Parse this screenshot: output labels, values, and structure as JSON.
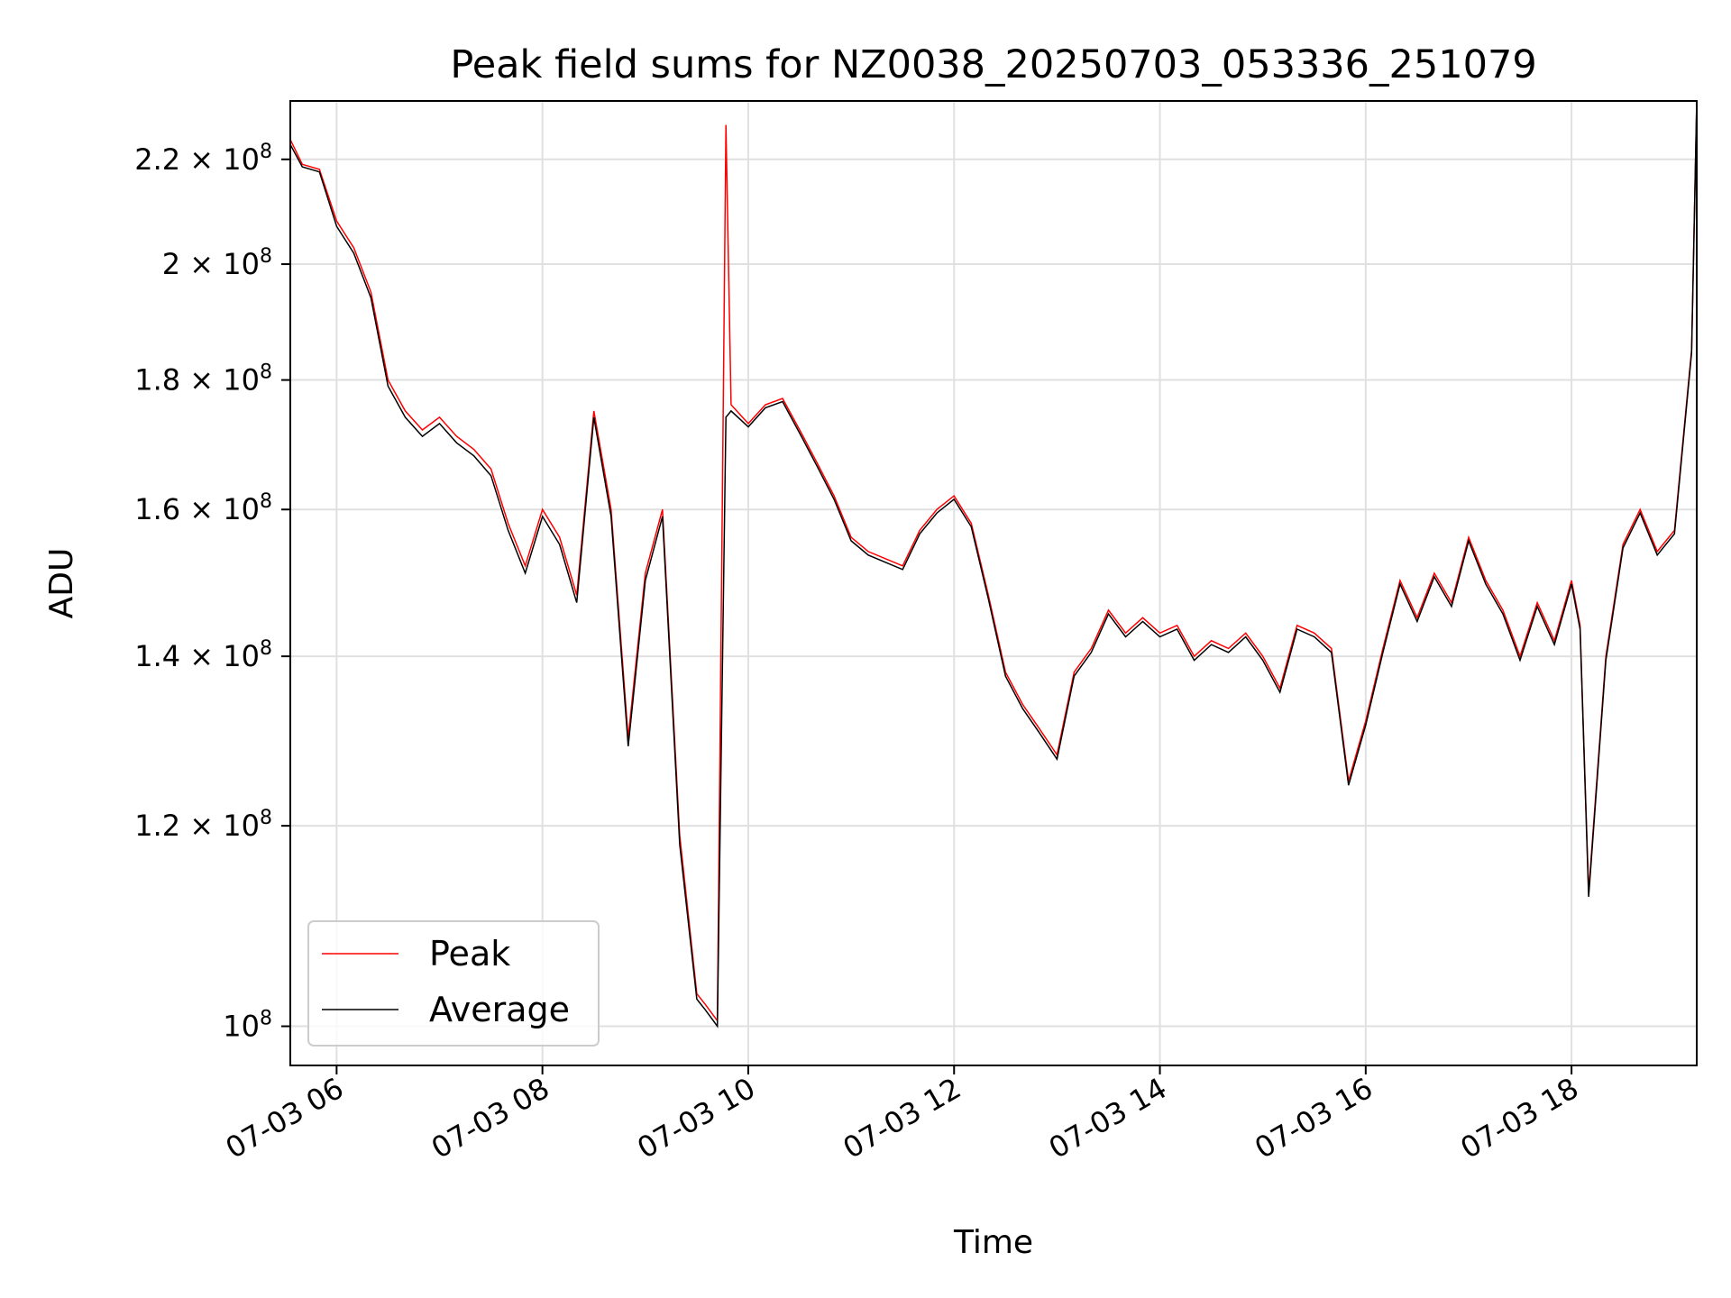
{
  "chart_data": {
    "type": "line",
    "title": "Peak field sums for NZ0038_20250703_053336_251079",
    "xlabel": "Time",
    "ylabel": "ADU",
    "yscale": "log",
    "ylim": [
      96500000,
      232000000
    ],
    "xlim": [
      "2025-07-03 05:33",
      "2025-07-03 19:13"
    ],
    "x_ticks": [
      "07-03 06",
      "07-03 08",
      "07-03 10",
      "07-03 12",
      "07-03 14",
      "07-03 16",
      "07-03 18"
    ],
    "y_ticks": [
      {
        "value": 100000000,
        "mantissa": "",
        "exp": "8"
      },
      {
        "value": 120000000,
        "mantissa": "1.2",
        "exp": "8"
      },
      {
        "value": 140000000,
        "mantissa": "1.4",
        "exp": "8"
      },
      {
        "value": 160000000,
        "mantissa": "1.6",
        "exp": "8"
      },
      {
        "value": 180000000,
        "mantissa": "1.8",
        "exp": "8"
      },
      {
        "value": 200000000,
        "mantissa": "2",
        "exp": "8"
      },
      {
        "value": 220000000,
        "mantissa": "2.2",
        "exp": "8"
      }
    ],
    "grid": true,
    "legend_position": "lower-left",
    "colors": {
      "peak": "#ff0000",
      "average": "#000000",
      "grid": "#e0e0e0"
    },
    "series": [
      {
        "name": "Peak",
        "x": [
          "2025-07-03 05:33",
          "2025-07-03 05:40",
          "2025-07-03 05:50",
          "2025-07-03 06:00",
          "2025-07-03 06:10",
          "2025-07-03 06:20",
          "2025-07-03 06:30",
          "2025-07-03 06:40",
          "2025-07-03 06:50",
          "2025-07-03 07:00",
          "2025-07-03 07:10",
          "2025-07-03 07:20",
          "2025-07-03 07:30",
          "2025-07-03 07:40",
          "2025-07-03 07:50",
          "2025-07-03 08:00",
          "2025-07-03 08:10",
          "2025-07-03 08:20",
          "2025-07-03 08:30",
          "2025-07-03 08:40",
          "2025-07-03 08:50",
          "2025-07-03 09:00",
          "2025-07-03 09:10",
          "2025-07-03 09:20",
          "2025-07-03 09:30",
          "2025-07-03 09:35",
          "2025-07-03 09:42",
          "2025-07-03 09:47",
          "2025-07-03 09:50",
          "2025-07-03 10:00",
          "2025-07-03 10:10",
          "2025-07-03 10:20",
          "2025-07-03 10:30",
          "2025-07-03 10:40",
          "2025-07-03 10:50",
          "2025-07-03 11:00",
          "2025-07-03 11:10",
          "2025-07-03 11:20",
          "2025-07-03 11:30",
          "2025-07-03 11:40",
          "2025-07-03 11:50",
          "2025-07-03 12:00",
          "2025-07-03 12:10",
          "2025-07-03 12:20",
          "2025-07-03 12:30",
          "2025-07-03 12:40",
          "2025-07-03 12:50",
          "2025-07-03 13:00",
          "2025-07-03 13:10",
          "2025-07-03 13:20",
          "2025-07-03 13:30",
          "2025-07-03 13:40",
          "2025-07-03 13:50",
          "2025-07-03 14:00",
          "2025-07-03 14:10",
          "2025-07-03 14:20",
          "2025-07-03 14:30",
          "2025-07-03 14:40",
          "2025-07-03 14:50",
          "2025-07-03 15:00",
          "2025-07-03 15:10",
          "2025-07-03 15:20",
          "2025-07-03 15:30",
          "2025-07-03 15:40",
          "2025-07-03 15:50",
          "2025-07-03 16:00",
          "2025-07-03 16:10",
          "2025-07-03 16:20",
          "2025-07-03 16:30",
          "2025-07-03 16:40",
          "2025-07-03 16:50",
          "2025-07-03 17:00",
          "2025-07-03 17:10",
          "2025-07-03 17:20",
          "2025-07-03 17:30",
          "2025-07-03 17:40",
          "2025-07-03 17:50",
          "2025-07-03 18:00",
          "2025-07-03 18:05",
          "2025-07-03 18:10",
          "2025-07-03 18:20",
          "2025-07-03 18:30",
          "2025-07-03 18:40",
          "2025-07-03 18:50",
          "2025-07-03 19:00",
          "2025-07-03 19:10",
          "2025-07-03 19:13"
        ],
        "values": [
          224000000,
          219000000,
          218000000,
          208000000,
          203000000,
          195000000,
          180000000,
          175000000,
          172000000,
          174000000,
          171000000,
          169000000,
          166000000,
          158000000,
          152000000,
          160000000,
          156000000,
          148000000,
          175000000,
          160000000,
          130000000,
          151000000,
          160000000,
          119000000,
          103000000,
          102000000,
          100500000,
          227000000,
          176000000,
          173000000,
          176000000,
          177000000,
          172000000,
          167000000,
          162000000,
          156000000,
          154000000,
          153000000,
          152000000,
          157000000,
          160000000,
          162000000,
          158000000,
          148000000,
          138000000,
          134000000,
          131000000,
          128000000,
          138000000,
          141000000,
          146000000,
          143000000,
          145000000,
          143000000,
          144000000,
          140000000,
          142000000,
          141000000,
          143000000,
          140000000,
          136000000,
          144000000,
          143000000,
          141000000,
          125000000,
          132000000,
          141000000,
          150000000,
          145000000,
          151000000,
          147000000,
          156000000,
          150000000,
          146000000,
          140000000,
          147000000,
          142000000,
          150000000,
          144000000,
          113000000,
          140000000,
          155000000,
          160000000,
          154000000,
          157000000,
          185000000,
          232000000
        ]
      },
      {
        "name": "Average",
        "x": [
          "2025-07-03 05:33",
          "2025-07-03 05:40",
          "2025-07-03 05:50",
          "2025-07-03 06:00",
          "2025-07-03 06:10",
          "2025-07-03 06:20",
          "2025-07-03 06:30",
          "2025-07-03 06:40",
          "2025-07-03 06:50",
          "2025-07-03 07:00",
          "2025-07-03 07:10",
          "2025-07-03 07:20",
          "2025-07-03 07:30",
          "2025-07-03 07:40",
          "2025-07-03 07:50",
          "2025-07-03 08:00",
          "2025-07-03 08:10",
          "2025-07-03 08:20",
          "2025-07-03 08:30",
          "2025-07-03 08:40",
          "2025-07-03 08:50",
          "2025-07-03 09:00",
          "2025-07-03 09:10",
          "2025-07-03 09:20",
          "2025-07-03 09:30",
          "2025-07-03 09:35",
          "2025-07-03 09:42",
          "2025-07-03 09:47",
          "2025-07-03 09:50",
          "2025-07-03 10:00",
          "2025-07-03 10:10",
          "2025-07-03 10:20",
          "2025-07-03 10:30",
          "2025-07-03 10:40",
          "2025-07-03 10:50",
          "2025-07-03 11:00",
          "2025-07-03 11:10",
          "2025-07-03 11:20",
          "2025-07-03 11:30",
          "2025-07-03 11:40",
          "2025-07-03 11:50",
          "2025-07-03 12:00",
          "2025-07-03 12:10",
          "2025-07-03 12:20",
          "2025-07-03 12:30",
          "2025-07-03 12:40",
          "2025-07-03 12:50",
          "2025-07-03 13:00",
          "2025-07-03 13:10",
          "2025-07-03 13:20",
          "2025-07-03 13:30",
          "2025-07-03 13:40",
          "2025-07-03 13:50",
          "2025-07-03 14:00",
          "2025-07-03 14:10",
          "2025-07-03 14:20",
          "2025-07-03 14:30",
          "2025-07-03 14:40",
          "2025-07-03 14:50",
          "2025-07-03 15:00",
          "2025-07-03 15:10",
          "2025-07-03 15:20",
          "2025-07-03 15:30",
          "2025-07-03 15:40",
          "2025-07-03 15:50",
          "2025-07-03 16:00",
          "2025-07-03 16:10",
          "2025-07-03 16:20",
          "2025-07-03 16:30",
          "2025-07-03 16:40",
          "2025-07-03 16:50",
          "2025-07-03 17:00",
          "2025-07-03 17:10",
          "2025-07-03 17:20",
          "2025-07-03 17:30",
          "2025-07-03 17:40",
          "2025-07-03 17:50",
          "2025-07-03 18:00",
          "2025-07-03 18:05",
          "2025-07-03 18:10",
          "2025-07-03 18:20",
          "2025-07-03 18:30",
          "2025-07-03 18:40",
          "2025-07-03 18:50",
          "2025-07-03 19:00",
          "2025-07-03 19:10",
          "2025-07-03 19:13"
        ],
        "values": [
          223000000,
          218500000,
          217500000,
          207000000,
          202000000,
          194000000,
          179000000,
          174000000,
          171000000,
          173000000,
          170000000,
          168000000,
          165000000,
          157000000,
          151000000,
          159000000,
          155000000,
          147000000,
          174000000,
          159000000,
          129000000,
          150000000,
          159000000,
          118000000,
          102500000,
          101500000,
          100000000,
          174000000,
          175000000,
          172500000,
          175500000,
          176500000,
          171500000,
          166500000,
          161500000,
          155500000,
          153500000,
          152500000,
          151500000,
          156500000,
          159500000,
          161500000,
          157500000,
          147500000,
          137500000,
          133500000,
          130500000,
          127500000,
          137500000,
          140500000,
          145500000,
          142500000,
          144500000,
          142500000,
          143500000,
          139500000,
          141500000,
          140500000,
          142500000,
          139500000,
          135500000,
          143500000,
          142500000,
          140500000,
          124500000,
          131500000,
          140500000,
          149500000,
          144500000,
          150500000,
          146500000,
          155500000,
          149500000,
          145500000,
          139500000,
          146500000,
          141500000,
          149500000,
          143500000,
          112500000,
          139500000,
          154500000,
          159500000,
          153500000,
          156500000,
          184500000,
          232000000
        ]
      }
    ]
  }
}
